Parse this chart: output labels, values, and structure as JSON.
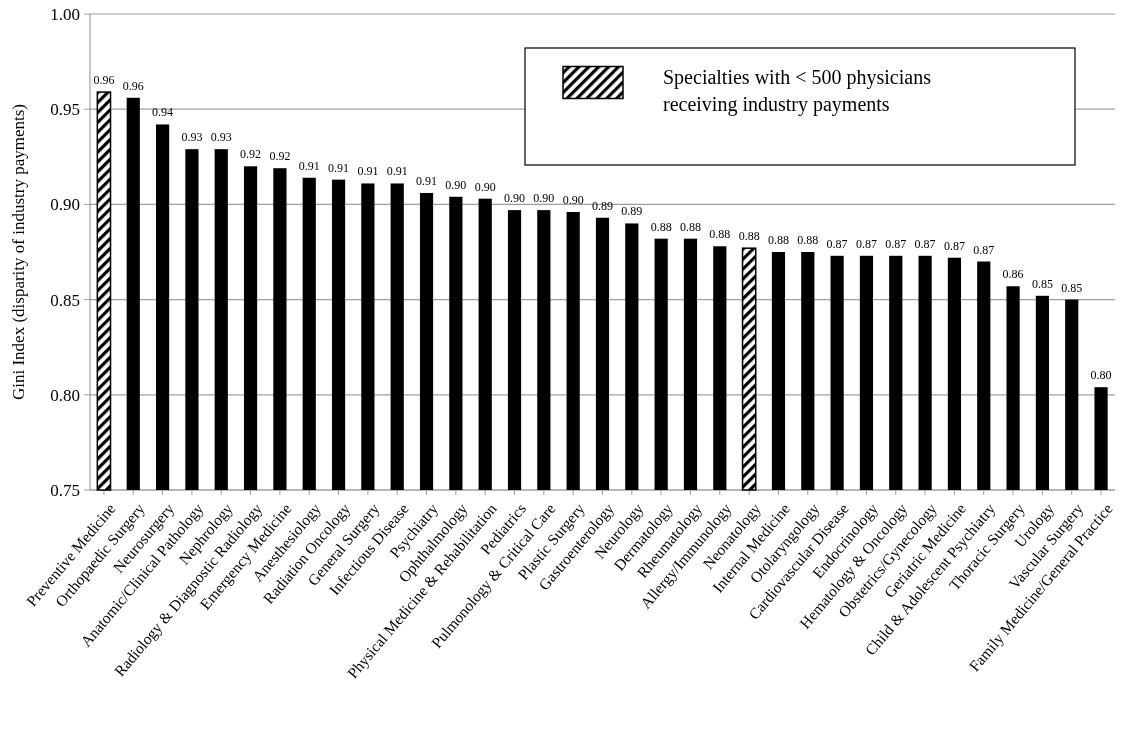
{
  "chart_data": {
    "type": "bar",
    "ylabel": "Gini Index (disparity of industry payments)",
    "categories": [
      "Preventive Medicine",
      "Orthopaedic Surgery",
      "Neurosurgery",
      "Anatomic/Clinical Pathology",
      "Nephrology",
      "Radiology & Diagnostic Radiology",
      "Emergency Medicine",
      "Anesthesiology",
      "Radiation Oncology",
      "General Surgery",
      "Infectious Disease",
      "Psychiatry",
      "Ophthalmology",
      "Physical Medicine & Rehabilitation",
      "Pediatrics",
      "Pulmonology & Critical Care",
      "Plastic Surgery",
      "Gastroenterology",
      "Neurology",
      "Dermatology",
      "Rheumatology",
      "Allergy/Immunology",
      "Neonatology",
      "Internal Medicine",
      "Otolaryngology",
      "Cardiovascular Disease",
      "Endocrinology",
      "Hematology & Oncology",
      "Obstetrics/Gynecology",
      "Geriatric Medicine",
      "Child & Adolescent Psychiatry",
      "Thoracic Surgery",
      "Urology",
      "Vascular Surgery",
      "Family Medicine/General Practice"
    ],
    "series": [
      {
        "color": "#000000",
        "values": [
          null,
          0.956,
          0.942,
          0.929,
          0.929,
          0.92,
          0.919,
          0.914,
          0.913,
          0.911,
          0.911,
          0.906,
          0.904,
          0.903,
          0.897,
          0.897,
          0.896,
          0.893,
          0.89,
          0.882,
          0.882,
          0.878,
          null,
          0.875,
          0.875,
          0.873,
          0.873,
          0.873,
          0.873,
          0.872,
          0.87,
          0.857,
          0.852,
          0.85,
          0.804
        ],
        "value_labels": [
          null,
          "0.96",
          "0.94",
          "0.93",
          "0.93",
          "0.92",
          "0.92",
          "0.91",
          "0.91",
          "0.91",
          "0.91",
          "0.91",
          "0.90",
          "0.90",
          "0.90",
          "0.90",
          "0.90",
          "0.89",
          "0.89",
          "0.88",
          "0.88",
          "0.88",
          null,
          "0.88",
          "0.88",
          "0.87",
          "0.87",
          "0.87",
          "0.87",
          "0.87",
          "0.87",
          "0.86",
          "0.85",
          "0.85",
          "0.80"
        ]
      },
      {
        "name": "Specialties with < 500 physicians receiving industry payments",
        "color": "#000000",
        "values": [
          0.959,
          null,
          null,
          null,
          null,
          null,
          null,
          null,
          null,
          null,
          null,
          null,
          null,
          null,
          null,
          null,
          null,
          null,
          null,
          null,
          null,
          null,
          0.877,
          null,
          null,
          null,
          null,
          null,
          null,
          null,
          null,
          null,
          null,
          null,
          null
        ],
        "value_labels": [
          "0.96",
          null,
          null,
          null,
          null,
          null,
          null,
          null,
          null,
          null,
          null,
          null,
          null,
          null,
          null,
          null,
          null,
          null,
          null,
          null,
          null,
          null,
          "0.88",
          null,
          null,
          null,
          null,
          null,
          null,
          null,
          null,
          null,
          null,
          null,
          null
        ]
      }
    ],
    "ylim": [
      0.75,
      1.0
    ],
    "yticks": [
      {
        "value": 0.75,
        "label": "0.75"
      },
      {
        "value": 0.8,
        "label": "0.80"
      },
      {
        "value": 0.85,
        "label": "0.85"
      },
      {
        "value": 0.9,
        "label": "0.90"
      },
      {
        "value": 0.95,
        "label": "0.95"
      },
      {
        "value": 1.0,
        "label": "1.00"
      }
    ],
    "grid": "y",
    "legend": "top right"
  }
}
